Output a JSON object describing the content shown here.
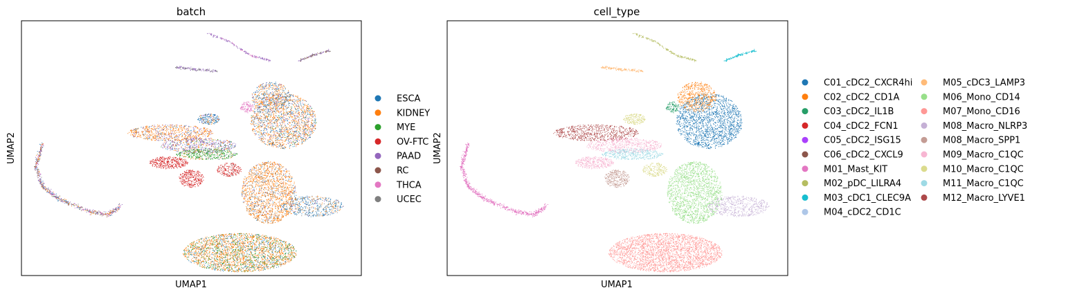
{
  "chart_data": [
    {
      "type": "scatter",
      "title": "batch",
      "xlabel": "UMAP1",
      "ylabel": "UMAP2",
      "grid": false,
      "legend_position": "right",
      "categories": [
        "ESCA",
        "KIDNEY",
        "MYE",
        "OV-FTC",
        "PAAD",
        "RC",
        "THCA",
        "UCEC"
      ],
      "colors": [
        "#1f77b4",
        "#ff7f0e",
        "#2ca02c",
        "#d62728",
        "#9467bd",
        "#8c564b",
        "#e377c2",
        "#7f7f7f"
      ]
    },
    {
      "type": "scatter",
      "title": "cell_type",
      "xlabel": "UMAP1",
      "ylabel": "UMAP2",
      "grid": false,
      "legend_position": "right",
      "legend_columns": 2,
      "categories": [
        "C01_cDC2_CXCR4hi",
        "C02_cDC2_CD1A",
        "C03_cDC2_IL1B",
        "C04_cDC2_FCN1",
        "C05_cDC2_ISG15",
        "C06_cDC2_CXCL9",
        "M01_Mast_KIT",
        "M02_pDC_LILRA4",
        "M03_cDC1_CLEC9A",
        "M04_cDC2_CD1C",
        "M05_cDC3_LAMP3",
        "M06_Mono_CD14",
        "M07_Mono_CD16",
        "M08_Macro_NLRP3",
        "M08_Macro_SPP1",
        "M09_Macro_C1QC",
        "M10_Macro_C1QC",
        "M11_Macro_C1QC",
        "M12_Macro_LYVE1"
      ],
      "colors": [
        "#1f77b4",
        "#ff7f0e",
        "#279e68",
        "#d62728",
        "#aa40fc",
        "#8c564b",
        "#e377c2",
        "#b5bd61",
        "#17becf",
        "#aec7e8",
        "#ffbb78",
        "#98df8a",
        "#ff9896",
        "#c5b0d5",
        "#c49c94",
        "#f7b6d2",
        "#dbdb8d",
        "#9edae5",
        "#ad494a"
      ]
    }
  ]
}
